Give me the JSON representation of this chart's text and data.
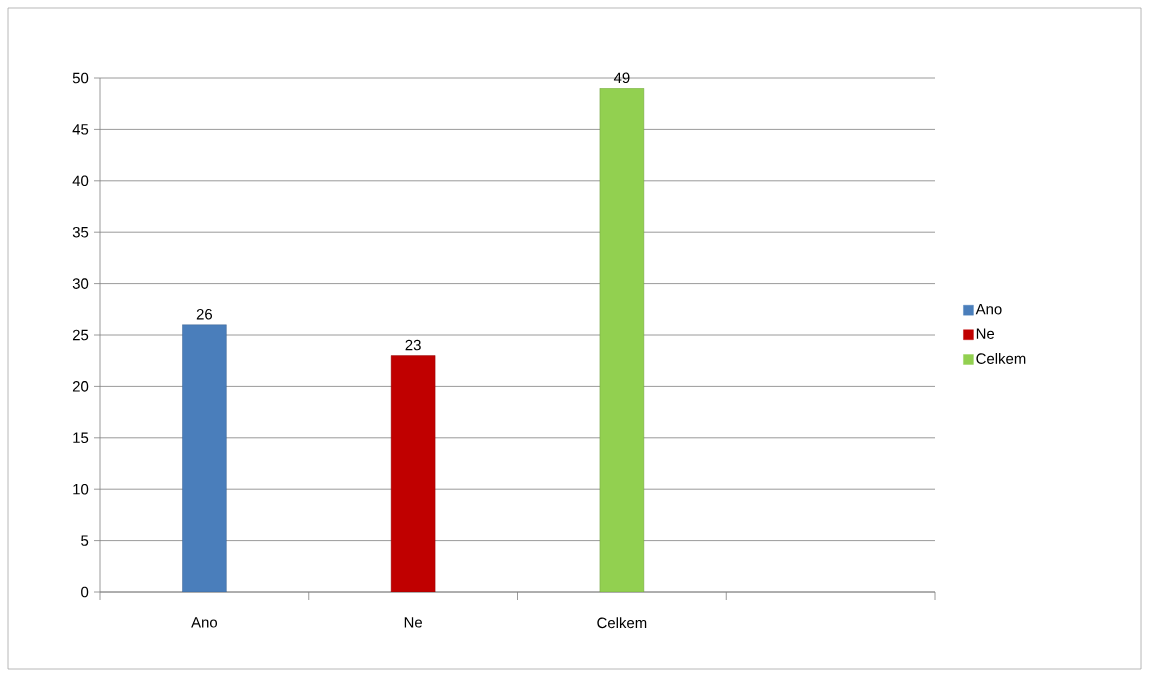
{
  "chart_data": {
    "type": "bar",
    "categories": [
      "Ano",
      "Ne",
      "Celkem",
      null
    ],
    "series": [
      {
        "name": "Ano",
        "color": "#4a7ebb",
        "values": [
          26,
          null,
          null,
          null
        ]
      },
      {
        "name": "Ne",
        "color": "#c00000",
        "values": [
          null,
          23,
          null,
          null
        ]
      },
      {
        "name": "Celkem",
        "color": "#92d050",
        "values": [
          null,
          null,
          49,
          null
        ]
      }
    ],
    "ylim": [
      0,
      50
    ],
    "yticks": [
      0,
      5,
      10,
      15,
      20,
      25,
      30,
      35,
      40,
      45,
      50
    ],
    "grid": "y",
    "legend": "right",
    "data_labels": true
  }
}
